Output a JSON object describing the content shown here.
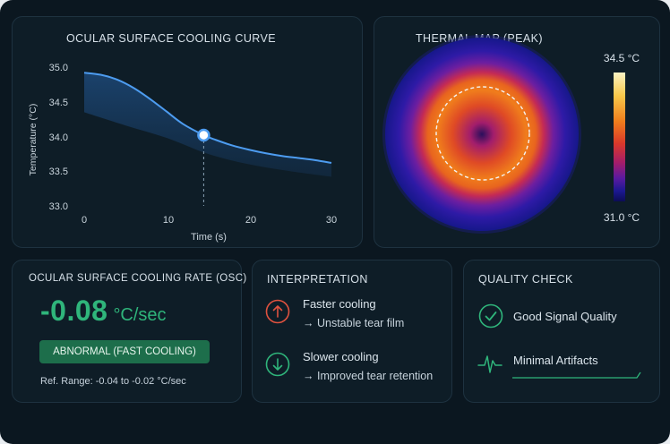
{
  "cooling_curve": {
    "title": "OCULAR SURFACE COOLING CURVE",
    "xlabel": "Time (s)",
    "ylabel": "Temperature (°C)",
    "x_ticks": [
      "0",
      "10",
      "20",
      "30"
    ],
    "y_ticks": [
      "35.0",
      "34.5",
      "34.0",
      "33.5",
      "33.0"
    ]
  },
  "chart_data": {
    "type": "line",
    "title": "OCULAR SURFACE COOLING CURVE",
    "xlabel": "Time (s)",
    "ylabel": "Temperature (°C)",
    "xlim": [
      0,
      30
    ],
    "ylim": [
      33.0,
      35.0
    ],
    "grid": false,
    "series": [
      {
        "color": "#4d9cf0",
        "x": [
          0,
          2,
          4,
          6,
          8,
          10,
          12,
          14.5,
          16,
          18,
          20,
          22,
          24,
          26,
          28,
          30
        ],
        "y": [
          34.92,
          34.89,
          34.82,
          34.7,
          34.54,
          34.36,
          34.18,
          34.02,
          33.95,
          33.87,
          33.81,
          33.76,
          33.72,
          33.69,
          33.66,
          33.62
        ]
      }
    ],
    "band": {
      "x": [
        0,
        5,
        10,
        15,
        20,
        25,
        30
      ],
      "lower": [
        34.35,
        34.16,
        33.98,
        33.75,
        33.6,
        33.5,
        33.42
      ]
    },
    "highlight": {
      "x": 14.5,
      "y": 34.02
    }
  },
  "thermal_map": {
    "title": "THERMAL MAP (PEAK)",
    "max_label": "34.5 °C",
    "min_label": "31.0 °C",
    "colors": [
      "#fbf3c4",
      "#f8c84a",
      "#f07d1c",
      "#d9392a",
      "#a41d6a",
      "#5a1aa0",
      "#1b1890",
      "#0c0d55"
    ]
  },
  "osc": {
    "title": "OCULAR SURFACE COOLING RATE (OSC)",
    "value": "-0.08",
    "unit": "°C/sec",
    "status": "ABNORMAL (FAST COOLING)",
    "reference": "Ref. Range: -0.04 to -0.02 °C/sec",
    "accent": "#2fb57b"
  },
  "interpretation": {
    "title": "INTERPRETATION",
    "items": [
      {
        "icon": "arrow-up-circle-icon",
        "color": "#e0523f",
        "line1": "Faster cooling",
        "line2": "→ Unstable tear film"
      },
      {
        "icon": "arrow-down-circle-icon",
        "color": "#2fb57b",
        "line1": "Slower cooling",
        "line2": "→ Improved tear retention"
      }
    ]
  },
  "quality": {
    "title": "QUALITY CHECK",
    "items": [
      {
        "icon": "check-circle-icon",
        "label": "Good Signal Quality"
      },
      {
        "icon": "waveform-icon",
        "label": "Minimal Artifacts"
      }
    ],
    "color": "#2fb57b"
  }
}
